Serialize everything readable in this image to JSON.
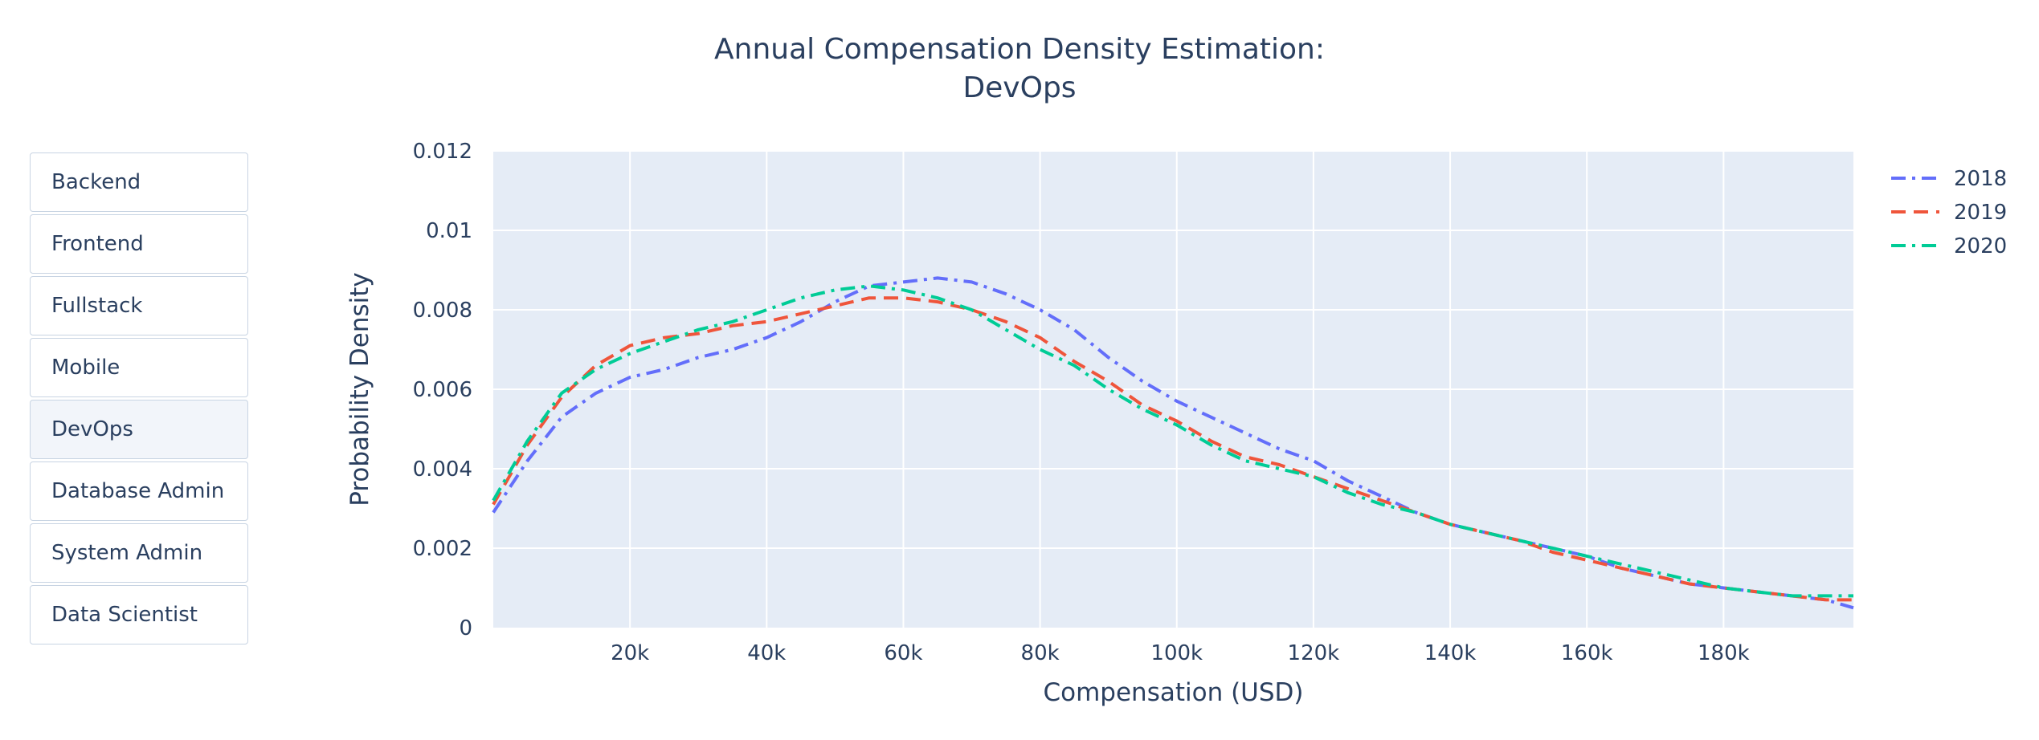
{
  "title_lines": [
    "Annual Compensation Density Estimation:",
    "DevOps"
  ],
  "buttons": [
    {
      "label": "Backend",
      "active": false
    },
    {
      "label": "Frontend",
      "active": false
    },
    {
      "label": "Fullstack",
      "active": false
    },
    {
      "label": "Mobile",
      "active": false
    },
    {
      "label": "DevOps",
      "active": true
    },
    {
      "label": "Database Admin",
      "active": false
    },
    {
      "label": "System Admin",
      "active": false
    },
    {
      "label": "Data Scientist",
      "active": false
    }
  ],
  "chart_data": {
    "type": "line",
    "title": "Annual Compensation Density Estimation: DevOps",
    "xlabel": "Compensation (USD)",
    "ylabel": "Probability Density",
    "xlim": [
      0,
      199000
    ],
    "ylim": [
      0,
      0.012
    ],
    "xticks": [
      20000,
      40000,
      60000,
      80000,
      100000,
      120000,
      140000,
      160000,
      180000
    ],
    "xtick_labels": [
      "20k",
      "40k",
      "60k",
      "80k",
      "100k",
      "120k",
      "140k",
      "160k",
      "180k"
    ],
    "yticks": [
      0,
      0.002,
      0.004,
      0.006,
      0.008,
      0.01,
      0.012
    ],
    "ytick_labels": [
      "0",
      "0.002",
      "0.004",
      "0.006",
      "0.008",
      "0.01",
      "0.012"
    ],
    "grid": true,
    "plot_bgcolor": "#e5ecf6",
    "legend_position": "top-right, outside plot",
    "x": [
      0,
      5000,
      10000,
      15000,
      20000,
      25000,
      30000,
      35000,
      40000,
      45000,
      50000,
      55000,
      60000,
      65000,
      70000,
      75000,
      80000,
      85000,
      90000,
      95000,
      100000,
      105000,
      110000,
      115000,
      120000,
      125000,
      130000,
      135000,
      140000,
      145000,
      150000,
      155000,
      160000,
      165000,
      170000,
      175000,
      180000,
      185000,
      190000,
      195000,
      199000
    ],
    "series": [
      {
        "name": "2018",
        "color": "#636efa",
        "dash": "dashdot",
        "values": [
          0.0029,
          0.0042,
          0.0053,
          0.0059,
          0.0063,
          0.0065,
          0.0068,
          0.007,
          0.0073,
          0.0077,
          0.0082,
          0.0086,
          0.0087,
          0.0088,
          0.0087,
          0.0084,
          0.008,
          0.0075,
          0.0068,
          0.0062,
          0.0057,
          0.0053,
          0.0049,
          0.0045,
          0.0042,
          0.0037,
          0.0033,
          0.0029,
          0.0026,
          0.0024,
          0.0022,
          0.002,
          0.0018,
          0.0015,
          0.0013,
          0.0011,
          0.001,
          0.0009,
          0.0008,
          0.0007,
          0.0005
        ]
      },
      {
        "name": "2019",
        "color": "#ef553b",
        "dash": "dash",
        "values": [
          0.0031,
          0.0046,
          0.0058,
          0.0066,
          0.0071,
          0.0073,
          0.0074,
          0.0076,
          0.0077,
          0.0079,
          0.0081,
          0.0083,
          0.0083,
          0.0082,
          0.008,
          0.0077,
          0.0073,
          0.0067,
          0.0062,
          0.0056,
          0.0052,
          0.0047,
          0.0043,
          0.0041,
          0.0038,
          0.0035,
          0.0032,
          0.0029,
          0.0026,
          0.0024,
          0.0022,
          0.0019,
          0.0017,
          0.0015,
          0.0013,
          0.0011,
          0.001,
          0.0009,
          0.0008,
          0.0007,
          0.0007
        ]
      },
      {
        "name": "2020",
        "color": "#00cc96",
        "dash": "dashdot",
        "values": [
          0.0032,
          0.0047,
          0.0059,
          0.0065,
          0.0069,
          0.0072,
          0.0075,
          0.0077,
          0.008,
          0.0083,
          0.0085,
          0.0086,
          0.0085,
          0.0083,
          0.008,
          0.0075,
          0.007,
          0.0066,
          0.006,
          0.0055,
          0.0051,
          0.0046,
          0.0042,
          0.004,
          0.0038,
          0.0034,
          0.0031,
          0.0029,
          0.0026,
          0.0024,
          0.0022,
          0.002,
          0.0018,
          0.0016,
          0.0014,
          0.0012,
          0.001,
          0.0009,
          0.0008,
          0.0008,
          0.0008
        ]
      }
    ]
  }
}
